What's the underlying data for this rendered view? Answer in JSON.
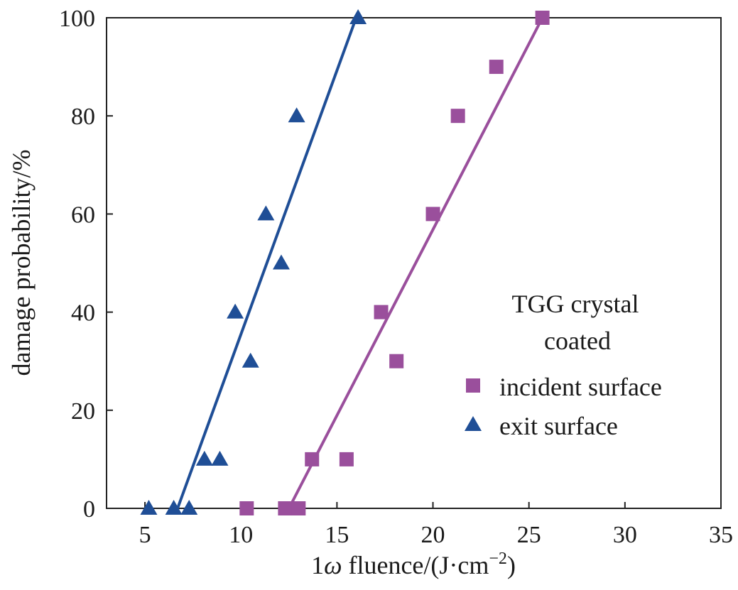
{
  "chart_data": {
    "type": "scatter",
    "title": "",
    "xlabel_main": "1",
    "xlabel_omega": "ω",
    "xlabel_rest": " fluence/(J·cm",
    "xlabel_exp": "−2",
    "xlabel_close": ")",
    "ylabel": "damage probability/%",
    "xlim": [
      3,
      35
    ],
    "ylim": [
      0,
      100
    ],
    "xticks": [
      5,
      10,
      15,
      20,
      25,
      30,
      35
    ],
    "yticks": [
      0,
      20,
      40,
      60,
      80,
      100
    ],
    "grid": false,
    "legend": {
      "placement": "right",
      "title_line1": "TGG crystal",
      "title_line2": "coated"
    },
    "series": [
      {
        "name": "incident surface",
        "marker": "square",
        "color": "#9a4f9c",
        "points": [
          {
            "x": 10.3,
            "y": 0
          },
          {
            "x": 12.3,
            "y": 0
          },
          {
            "x": 13.0,
            "y": 0
          },
          {
            "x": 13.7,
            "y": 10
          },
          {
            "x": 15.5,
            "y": 10
          },
          {
            "x": 17.3,
            "y": 40
          },
          {
            "x": 18.1,
            "y": 30
          },
          {
            "x": 20.0,
            "y": 60
          },
          {
            "x": 21.3,
            "y": 80
          },
          {
            "x": 23.3,
            "y": 90
          },
          {
            "x": 25.7,
            "y": 100
          }
        ],
        "fit": [
          {
            "x": 12.5,
            "y": 0
          },
          {
            "x": 25.7,
            "y": 100
          }
        ]
      },
      {
        "name": "exit surface",
        "marker": "triangle",
        "color": "#1f4e96",
        "points": [
          {
            "x": 5.2,
            "y": 0
          },
          {
            "x": 6.5,
            "y": 0
          },
          {
            "x": 7.3,
            "y": 0
          },
          {
            "x": 8.1,
            "y": 10
          },
          {
            "x": 8.9,
            "y": 10
          },
          {
            "x": 9.7,
            "y": 40
          },
          {
            "x": 10.5,
            "y": 30
          },
          {
            "x": 11.3,
            "y": 60
          },
          {
            "x": 12.1,
            "y": 50
          },
          {
            "x": 12.9,
            "y": 80
          },
          {
            "x": 16.1,
            "y": 100
          }
        ],
        "fit": [
          {
            "x": 6.7,
            "y": 0
          },
          {
            "x": 16.0,
            "y": 100
          }
        ]
      }
    ]
  }
}
